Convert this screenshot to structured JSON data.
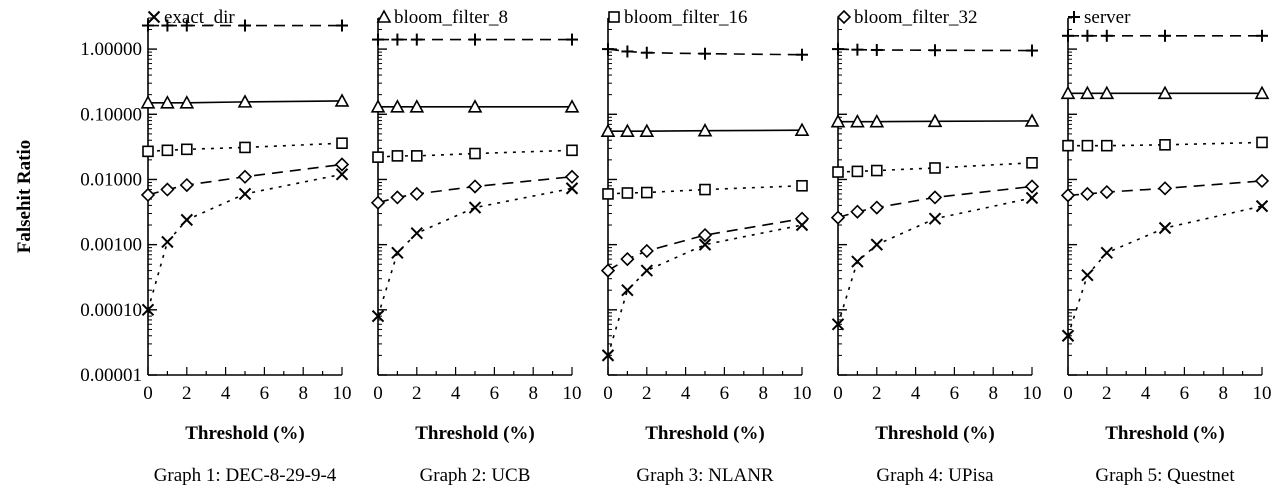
{
  "chart_data": {
    "type": "line",
    "ylabel": "Falsehit Ratio",
    "yscale": "log",
    "ylim": [
      1e-05,
      3
    ],
    "y_ticks": [
      "0.00001",
      "0.00010",
      "0.00100",
      "0.01000",
      "0.10000",
      "1.00000"
    ],
    "xlabel": "Threshold (%)",
    "xlim": [
      0,
      10
    ],
    "x_ticks": [
      "0",
      "2",
      "4",
      "6",
      "8",
      "10"
    ],
    "x": [
      0,
      1,
      2,
      5,
      10
    ],
    "legend": [
      {
        "key": "exact_dir",
        "label": "exact_dir",
        "marker": "x",
        "line": "dotted"
      },
      {
        "key": "bloom_filter_8",
        "label": "bloom_filter_8",
        "marker": "triangle",
        "line": "solid"
      },
      {
        "key": "bloom_filter_16",
        "label": "bloom_filter_16",
        "marker": "square",
        "line": "dotted"
      },
      {
        "key": "bloom_filter_32",
        "label": "bloom_filter_32",
        "marker": "diamond",
        "line": "dashed"
      },
      {
        "key": "server",
        "label": "server",
        "marker": "plus",
        "line": "dashed"
      }
    ],
    "panels": [
      {
        "caption": "Graph 1: DEC-8-29-9-4",
        "series": {
          "exact_dir": [
            0.0001,
            0.0011,
            0.0024,
            0.006,
            0.012
          ],
          "bloom_filter_8": [
            0.15,
            0.15,
            0.15,
            0.155,
            0.16
          ],
          "bloom_filter_16": [
            0.027,
            0.028,
            0.029,
            0.031,
            0.036
          ],
          "bloom_filter_32": [
            0.0058,
            0.007,
            0.0082,
            0.011,
            0.017
          ],
          "server": [
            2.3,
            2.3,
            2.3,
            2.3,
            2.3
          ]
        }
      },
      {
        "caption": "Graph 2: UCB",
        "series": {
          "exact_dir": [
            8e-05,
            0.00075,
            0.0015,
            0.0037,
            0.0073
          ],
          "bloom_filter_8": [
            0.13,
            0.13,
            0.13,
            0.13,
            0.13
          ],
          "bloom_filter_16": [
            0.022,
            0.023,
            0.023,
            0.025,
            0.028
          ],
          "bloom_filter_32": [
            0.0044,
            0.0053,
            0.006,
            0.0078,
            0.011
          ],
          "server": [
            1.4,
            1.4,
            1.4,
            1.4,
            1.4
          ]
        }
      },
      {
        "caption": "Graph 3: NLANR",
        "series": {
          "exact_dir": [
            2e-05,
            0.0002,
            0.0004,
            0.001,
            0.002
          ],
          "bloom_filter_8": [
            0.055,
            0.055,
            0.055,
            0.056,
            0.057
          ],
          "bloom_filter_16": [
            0.006,
            0.0062,
            0.0063,
            0.007,
            0.008
          ],
          "bloom_filter_32": [
            0.0004,
            0.0006,
            0.0008,
            0.0014,
            0.0025
          ],
          "server": [
            1.0,
            0.92,
            0.88,
            0.85,
            0.82
          ]
        }
      },
      {
        "caption": "Graph 4: UPisa",
        "series": {
          "exact_dir": [
            6e-05,
            0.00055,
            0.001,
            0.0025,
            0.0052
          ],
          "bloom_filter_8": [
            0.077,
            0.077,
            0.077,
            0.078,
            0.079
          ],
          "bloom_filter_16": [
            0.013,
            0.0133,
            0.0137,
            0.015,
            0.018
          ],
          "bloom_filter_32": [
            0.0026,
            0.0032,
            0.0037,
            0.0053,
            0.0078
          ],
          "server": [
            1.0,
            0.98,
            0.97,
            0.96,
            0.95
          ]
        }
      },
      {
        "caption": "Graph 5: Questnet",
        "series": {
          "exact_dir": [
            4e-05,
            0.00034,
            0.00075,
            0.0018,
            0.0039
          ],
          "bloom_filter_8": [
            0.21,
            0.21,
            0.21,
            0.21,
            0.21
          ],
          "bloom_filter_16": [
            0.033,
            0.033,
            0.033,
            0.034,
            0.037
          ],
          "bloom_filter_32": [
            0.0057,
            0.006,
            0.0064,
            0.0073,
            0.0095
          ],
          "server": [
            1.6,
            1.6,
            1.6,
            1.6,
            1.6
          ]
        }
      }
    ]
  }
}
